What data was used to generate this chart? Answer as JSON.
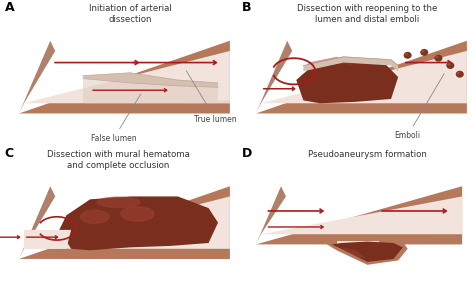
{
  "bg_color": "#ffffff",
  "panel_labels": [
    "A",
    "B",
    "C",
    "D"
  ],
  "panel_titles": [
    "Initiation of arterial\ndissection",
    "Dissection with reopening to the\nlumen and distal emboli",
    "Dissection with mural hematoma\nand complete occlusion",
    "Pseudoaneurysm formation"
  ],
  "artery_outer_color": "#b5785a",
  "artery_wall_dark": "#9a6245",
  "artery_inner_color": "#e8d4c8",
  "artery_inner_light": "#f2e4dc",
  "hematoma_color": "#7a2e1e",
  "hematoma_light": "#9a4030",
  "arrow_color": "#aa1a1a",
  "flap_color": "#d4bfb0",
  "flap_edge": "#a89080",
  "emboli_color": "#7a3520",
  "label_color": "#444444",
  "label_fs": 5.5,
  "panel_label_fs": 9,
  "title_fs": 6.2
}
